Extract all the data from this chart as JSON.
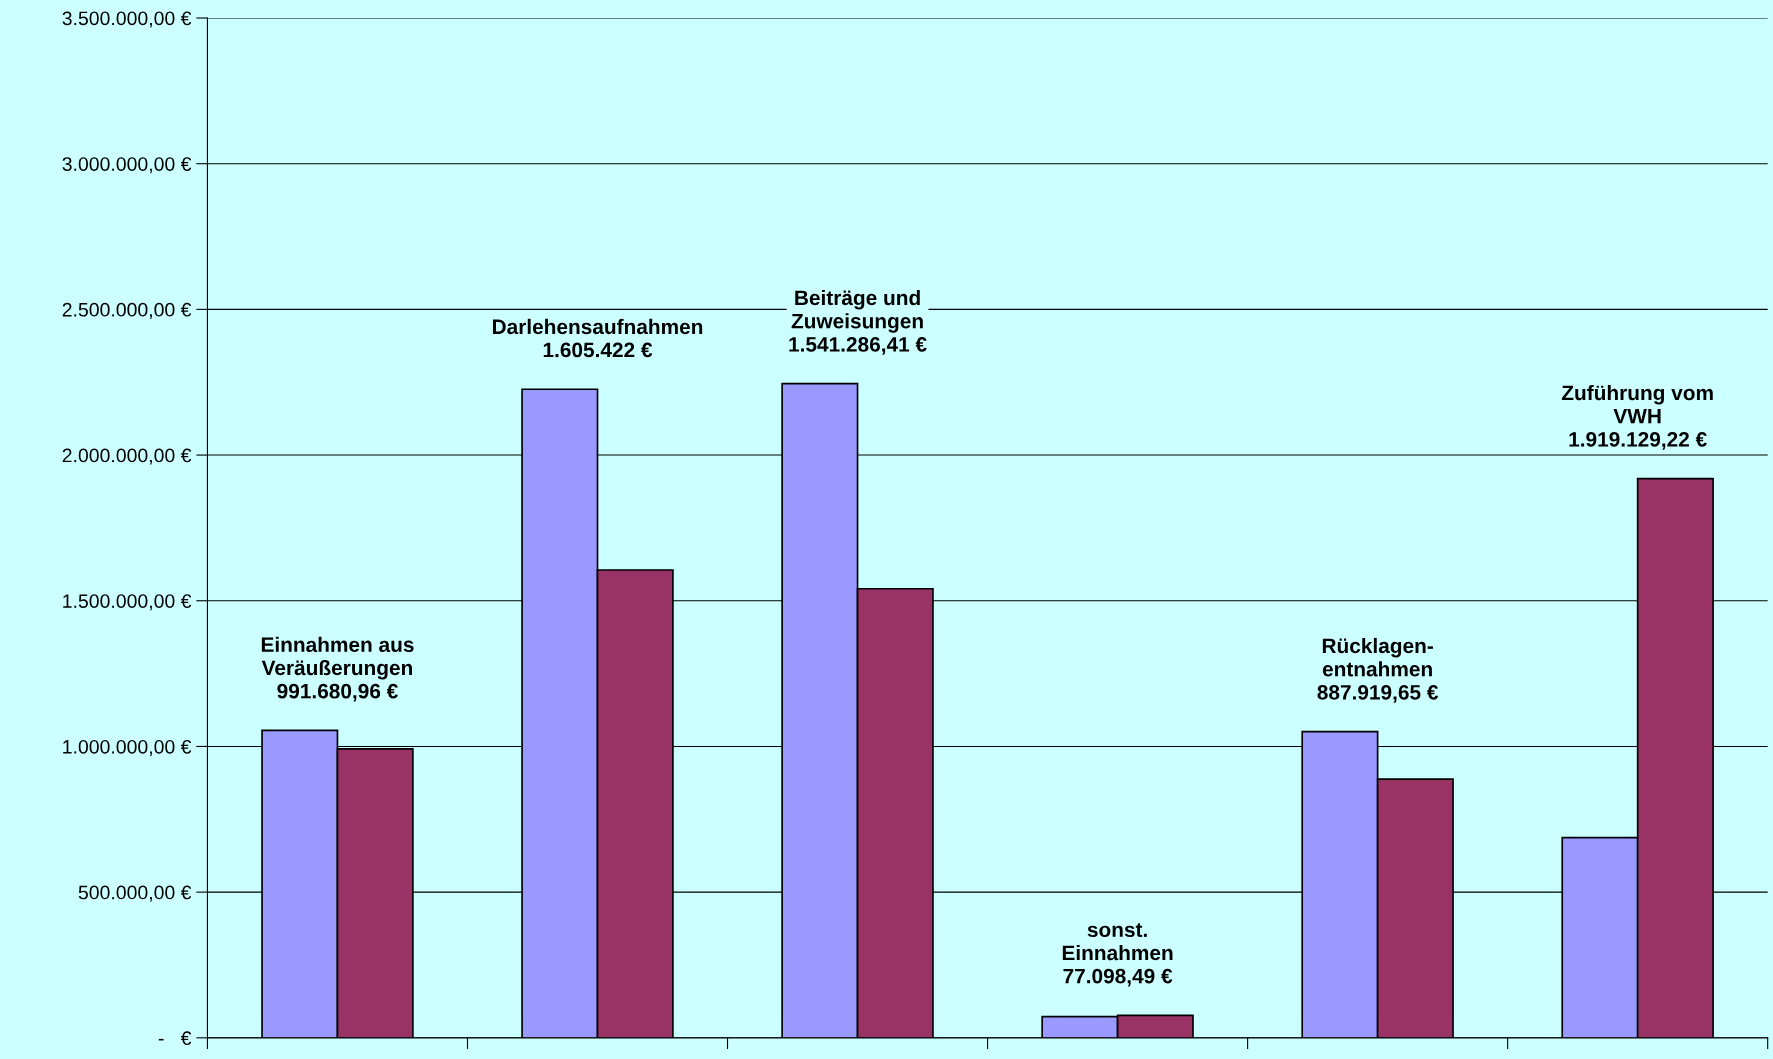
{
  "chart_data": {
    "type": "bar",
    "categories": [
      null,
      null,
      null,
      null,
      null,
      null
    ],
    "series": [
      {
        "color": "#9999ff",
        "values": [
          1055000,
          2226000,
          2245000,
          73000,
          1051000,
          687000
        ]
      },
      {
        "color": "#993366",
        "values": [
          991680.96,
          1605422,
          1541286.41,
          77098.49,
          887919.65,
          1919129.22
        ]
      }
    ],
    "annotations": [
      "Einnahmen aus\nVeräußerungen\n991.680,96 €",
      "Darlehensaufnahmen\n1.605.422 €",
      "Beiträge und\nZuweisungen\n1.541.286,41 €",
      "sonst.\nEinnahmen\n77.098,49 €",
      "Rücklagen-\nentnahmen\n887.919,65 €",
      "Zuführung vom\nVWH\n1.919.129,22 €"
    ],
    "ylim": [
      0,
      3500000
    ],
    "yticks": [
      {
        "value": 0,
        "label": "-   €"
      },
      {
        "value": 500000,
        "label": "500.000,00 €"
      },
      {
        "value": 1000000,
        "label": "1.000.000,00 €"
      },
      {
        "value": 1500000,
        "label": "1.500.000,00 €"
      },
      {
        "value": 2000000,
        "label": "2.000.000,00 €"
      },
      {
        "value": 2500000,
        "label": "2.500.000,00 €"
      },
      {
        "value": 3000000,
        "label": "3.000.000,00 €"
      },
      {
        "value": 3500000,
        "label": "3.500.000,00 €"
      }
    ],
    "grid": "y",
    "tick_labels": "y"
  }
}
